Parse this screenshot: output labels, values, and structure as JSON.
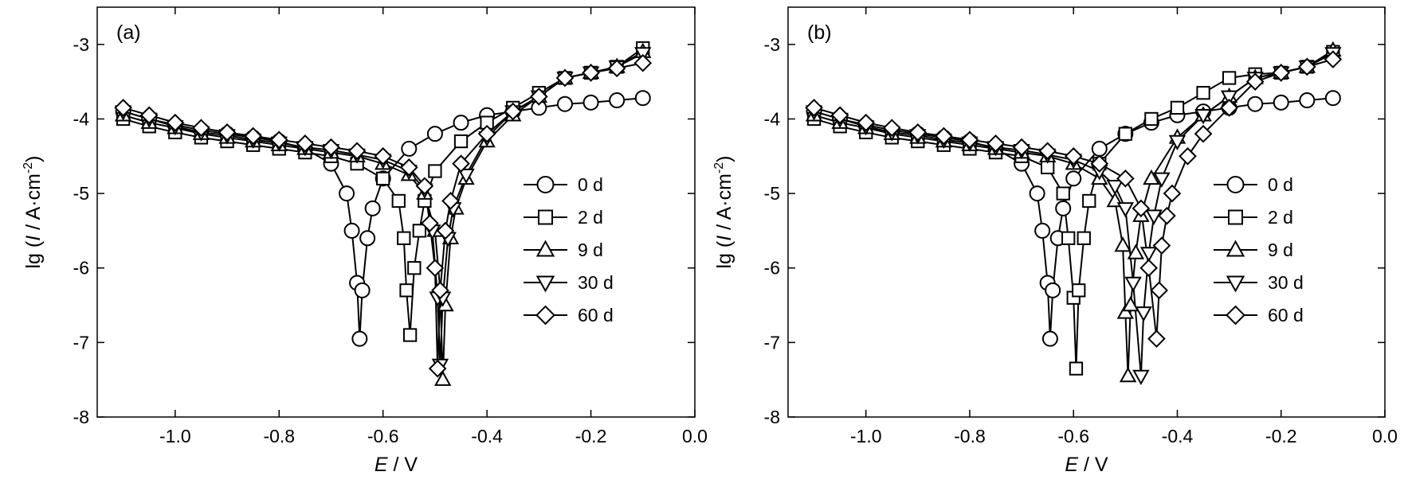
{
  "chart_data": [
    {
      "type": "line",
      "panel_label": "(a)",
      "xlabel": [
        {
          "text": "E",
          "style": "italic"
        },
        {
          "text": " / V"
        }
      ],
      "ylabel": [
        {
          "text": "lg ("
        },
        {
          "text": "I",
          "style": "italic"
        },
        {
          "text": " / A·cm"
        },
        {
          "text": "-2",
          "style": "super"
        },
        {
          "text": ")"
        }
      ],
      "xlim": [
        -1.15,
        0
      ],
      "ylim": [
        -8,
        -2.5
      ],
      "xticks": [
        {
          "value": -1,
          "label": "-1.0"
        },
        -0.8,
        -0.6,
        -0.4,
        -0.2,
        {
          "value": 0,
          "label": "0.0"
        }
      ],
      "yticks": [
        -8,
        -7,
        -6,
        -5,
        -4,
        -3
      ],
      "legend": "right",
      "color": "#000000",
      "series": [
        {
          "name": "0 d",
          "marker": "circle",
          "x": [
            -1.1,
            -1.05,
            -1.0,
            -0.95,
            -0.9,
            -0.85,
            -0.8,
            -0.75,
            -0.7,
            -0.67,
            -0.66,
            -0.65,
            -0.645,
            -0.64,
            -0.63,
            -0.62,
            -0.6,
            -0.55,
            -0.5,
            -0.45,
            -0.4,
            -0.35,
            -0.3,
            -0.25,
            -0.2,
            -0.15,
            -0.1
          ],
          "values": [
            -3.9,
            -4.0,
            -4.08,
            -4.15,
            -4.2,
            -4.25,
            -4.3,
            -4.4,
            -4.6,
            -5.0,
            -5.5,
            -6.2,
            -6.95,
            -6.3,
            -5.6,
            -5.2,
            -4.8,
            -4.4,
            -4.2,
            -4.05,
            -3.95,
            -3.9,
            -3.85,
            -3.8,
            -3.78,
            -3.75,
            -3.72
          ]
        },
        {
          "name": "2 d",
          "marker": "square",
          "x": [
            -1.1,
            -1.05,
            -1.0,
            -0.95,
            -0.9,
            -0.85,
            -0.8,
            -0.75,
            -0.7,
            -0.65,
            -0.6,
            -0.57,
            -0.56,
            -0.555,
            -0.548,
            -0.54,
            -0.53,
            -0.52,
            -0.5,
            -0.45,
            -0.4,
            -0.35,
            -0.3,
            -0.25,
            -0.2,
            -0.15,
            -0.1
          ],
          "values": [
            -4.0,
            -4.1,
            -4.18,
            -4.25,
            -4.3,
            -4.35,
            -4.4,
            -4.45,
            -4.5,
            -4.6,
            -4.8,
            -5.1,
            -5.6,
            -6.3,
            -6.9,
            -6.0,
            -5.5,
            -5.1,
            -4.7,
            -4.3,
            -4.05,
            -3.85,
            -3.65,
            -3.45,
            -3.38,
            -3.3,
            -3.05
          ]
        },
        {
          "name": "9 d",
          "marker": "triangle-up",
          "x": [
            -1.1,
            -1.05,
            -1.0,
            -0.95,
            -0.9,
            -0.85,
            -0.8,
            -0.75,
            -0.7,
            -0.65,
            -0.6,
            -0.55,
            -0.52,
            -0.5,
            -0.49,
            -0.485,
            -0.48,
            -0.47,
            -0.46,
            -0.44,
            -0.4,
            -0.35,
            -0.3,
            -0.25,
            -0.2,
            -0.15,
            -0.1
          ],
          "values": [
            -3.95,
            -4.05,
            -4.12,
            -4.2,
            -4.25,
            -4.3,
            -4.35,
            -4.4,
            -4.45,
            -4.5,
            -4.6,
            -4.75,
            -5.0,
            -5.5,
            -6.3,
            -7.5,
            -6.5,
            -5.6,
            -5.2,
            -4.8,
            -4.3,
            -3.95,
            -3.7,
            -3.45,
            -3.38,
            -3.3,
            -3.1
          ]
        },
        {
          "name": "30 d",
          "marker": "triangle-down",
          "x": [
            -1.1,
            -1.05,
            -1.0,
            -0.95,
            -0.9,
            -0.85,
            -0.8,
            -0.75,
            -0.7,
            -0.65,
            -0.6,
            -0.55,
            -0.52,
            -0.505,
            -0.495,
            -0.49,
            -0.485,
            -0.475,
            -0.465,
            -0.44,
            -0.4,
            -0.35,
            -0.3,
            -0.25,
            -0.2,
            -0.15,
            -0.1
          ],
          "values": [
            -3.9,
            -4.0,
            -4.1,
            -4.18,
            -4.22,
            -4.28,
            -4.32,
            -4.38,
            -4.42,
            -4.48,
            -4.55,
            -4.7,
            -4.95,
            -5.5,
            -6.4,
            -7.3,
            -6.4,
            -5.6,
            -5.2,
            -4.75,
            -4.25,
            -3.9,
            -3.7,
            -3.45,
            -3.38,
            -3.3,
            -3.12
          ]
        },
        {
          "name": "60 d",
          "marker": "diamond",
          "x": [
            -1.1,
            -1.05,
            -1.0,
            -0.95,
            -0.9,
            -0.85,
            -0.8,
            -0.75,
            -0.7,
            -0.65,
            -0.6,
            -0.55,
            -0.52,
            -0.51,
            -0.5,
            -0.495,
            -0.49,
            -0.48,
            -0.47,
            -0.45,
            -0.4,
            -0.35,
            -0.3,
            -0.25,
            -0.2,
            -0.15,
            -0.1
          ],
          "values": [
            -3.85,
            -3.95,
            -4.05,
            -4.12,
            -4.18,
            -4.23,
            -4.28,
            -4.33,
            -4.38,
            -4.43,
            -4.5,
            -4.65,
            -4.9,
            -5.4,
            -6.0,
            -7.35,
            -6.3,
            -5.5,
            -5.1,
            -4.6,
            -4.2,
            -3.9,
            -3.7,
            -3.45,
            -3.38,
            -3.32,
            -3.25
          ]
        }
      ]
    },
    {
      "type": "line",
      "panel_label": "(b)",
      "xlabel": [
        {
          "text": "E",
          "style": "italic"
        },
        {
          "text": " / V"
        }
      ],
      "ylabel": [
        {
          "text": "lg ("
        },
        {
          "text": "I",
          "style": "italic"
        },
        {
          "text": " / A·cm"
        },
        {
          "text": "-2",
          "style": "super"
        },
        {
          "text": ")"
        }
      ],
      "xlim": [
        -1.15,
        0
      ],
      "ylim": [
        -8,
        -2.5
      ],
      "xticks": [
        {
          "value": -1,
          "label": "-1.0"
        },
        -0.8,
        -0.6,
        -0.4,
        -0.2,
        {
          "value": 0,
          "label": "0.0"
        }
      ],
      "yticks": [
        -8,
        -7,
        -6,
        -5,
        -4,
        -3
      ],
      "legend": "right",
      "color": "#000000",
      "series": [
        {
          "name": "0 d",
          "marker": "circle",
          "x": [
            -1.1,
            -1.05,
            -1.0,
            -0.95,
            -0.9,
            -0.85,
            -0.8,
            -0.75,
            -0.7,
            -0.67,
            -0.66,
            -0.65,
            -0.645,
            -0.64,
            -0.63,
            -0.62,
            -0.6,
            -0.55,
            -0.5,
            -0.45,
            -0.4,
            -0.35,
            -0.3,
            -0.25,
            -0.2,
            -0.15,
            -0.1
          ],
          "values": [
            -3.9,
            -4.0,
            -4.08,
            -4.15,
            -4.2,
            -4.25,
            -4.3,
            -4.4,
            -4.6,
            -5.0,
            -5.5,
            -6.2,
            -6.95,
            -6.3,
            -5.6,
            -5.2,
            -4.8,
            -4.4,
            -4.2,
            -4.05,
            -3.95,
            -3.9,
            -3.85,
            -3.8,
            -3.78,
            -3.75,
            -3.72
          ]
        },
        {
          "name": "2 d",
          "marker": "square",
          "x": [
            -1.1,
            -1.05,
            -1.0,
            -0.95,
            -0.9,
            -0.85,
            -0.8,
            -0.75,
            -0.7,
            -0.65,
            -0.62,
            -0.61,
            -0.6,
            -0.595,
            -0.59,
            -0.58,
            -0.57,
            -0.55,
            -0.5,
            -0.45,
            -0.4,
            -0.35,
            -0.3,
            -0.25,
            -0.2,
            -0.15,
            -0.1
          ],
          "values": [
            -4.0,
            -4.1,
            -4.18,
            -4.25,
            -4.3,
            -4.35,
            -4.4,
            -4.45,
            -4.5,
            -4.65,
            -5.0,
            -5.6,
            -6.4,
            -7.35,
            -6.3,
            -5.6,
            -5.1,
            -4.6,
            -4.2,
            -4.0,
            -3.85,
            -3.65,
            -3.45,
            -3.4,
            -3.38,
            -3.3,
            -3.1
          ]
        },
        {
          "name": "9 d",
          "marker": "triangle-up",
          "x": [
            -1.1,
            -1.05,
            -1.0,
            -0.95,
            -0.9,
            -0.85,
            -0.8,
            -0.75,
            -0.7,
            -0.65,
            -0.6,
            -0.55,
            -0.52,
            -0.505,
            -0.5,
            -0.495,
            -0.49,
            -0.48,
            -0.47,
            -0.45,
            -0.4,
            -0.35,
            -0.3,
            -0.25,
            -0.2,
            -0.15,
            -0.1
          ],
          "values": [
            -3.95,
            -4.05,
            -4.12,
            -4.2,
            -4.25,
            -4.3,
            -4.35,
            -4.4,
            -4.45,
            -4.5,
            -4.6,
            -4.8,
            -5.1,
            -5.7,
            -6.6,
            -7.45,
            -6.5,
            -5.8,
            -5.3,
            -4.8,
            -4.25,
            -3.95,
            -3.7,
            -3.45,
            -3.38,
            -3.3,
            -3.08
          ]
        },
        {
          "name": "30 d",
          "marker": "triangle-down",
          "x": [
            -1.1,
            -1.05,
            -1.0,
            -0.95,
            -0.9,
            -0.85,
            -0.8,
            -0.75,
            -0.7,
            -0.65,
            -0.6,
            -0.55,
            -0.52,
            -0.5,
            -0.485,
            -0.47,
            -0.465,
            -0.455,
            -0.445,
            -0.43,
            -0.4,
            -0.35,
            -0.3,
            -0.25,
            -0.2,
            -0.15,
            -0.1
          ],
          "values": [
            -3.9,
            -4.0,
            -4.1,
            -4.18,
            -4.22,
            -4.28,
            -4.32,
            -4.38,
            -4.42,
            -4.48,
            -4.55,
            -4.7,
            -4.9,
            -5.2,
            -6.2,
            -7.45,
            -6.6,
            -5.8,
            -5.3,
            -4.8,
            -4.3,
            -3.95,
            -3.7,
            -3.45,
            -3.38,
            -3.3,
            -3.12
          ]
        },
        {
          "name": "60 d",
          "marker": "diamond",
          "x": [
            -1.1,
            -1.05,
            -1.0,
            -0.95,
            -0.9,
            -0.85,
            -0.8,
            -0.75,
            -0.7,
            -0.65,
            -0.6,
            -0.55,
            -0.5,
            -0.47,
            -0.455,
            -0.44,
            -0.435,
            -0.43,
            -0.42,
            -0.41,
            -0.38,
            -0.35,
            -0.3,
            -0.25,
            -0.2,
            -0.15,
            -0.1
          ],
          "values": [
            -3.85,
            -3.95,
            -4.05,
            -4.12,
            -4.18,
            -4.23,
            -4.28,
            -4.33,
            -4.38,
            -4.43,
            -4.5,
            -4.6,
            -4.8,
            -5.2,
            -6.0,
            -6.95,
            -6.3,
            -5.7,
            -5.3,
            -5.0,
            -4.5,
            -4.2,
            -3.85,
            -3.5,
            -3.38,
            -3.3,
            -3.2
          ]
        }
      ]
    }
  ]
}
